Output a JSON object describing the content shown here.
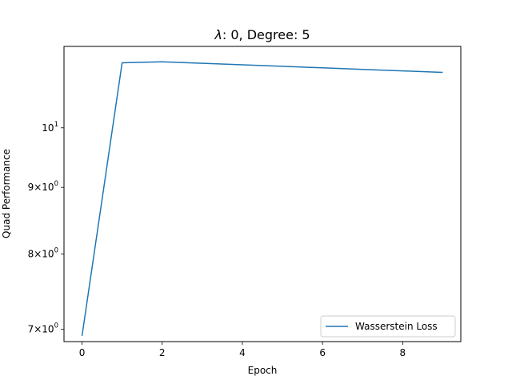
{
  "chart_data": {
    "type": "line",
    "title_parts": {
      "symbol": "λ",
      "rest": ": 0, Degree: 5"
    },
    "xlabel": "Epoch",
    "ylabel": "Quad Performance",
    "y_scale": "log",
    "xlim": [
      -0.45,
      9.45
    ],
    "ylim": [
      6.85,
      11.55
    ],
    "x_ticks": [
      0,
      2,
      4,
      6,
      8
    ],
    "y_ticks": [
      {
        "value": 7,
        "base": "7",
        "mult": "×",
        "ten": "10",
        "exp": "0"
      },
      {
        "value": 8,
        "base": "8",
        "mult": "×",
        "ten": "10",
        "exp": "0"
      },
      {
        "value": 9,
        "base": "9",
        "mult": "×",
        "ten": "10",
        "exp": "0"
      },
      {
        "value": 10,
        "base": "",
        "mult": "",
        "ten": "10",
        "exp": "1"
      }
    ],
    "series": [
      {
        "name": "Wasserstein Loss",
        "color": "#1f77b4",
        "x": [
          0,
          1,
          2,
          3,
          4,
          5,
          6,
          7,
          8,
          9
        ],
        "values": [
          6.92,
          11.22,
          11.24,
          11.21,
          11.18,
          11.15,
          11.12,
          11.09,
          11.06,
          11.03
        ]
      }
    ],
    "legend": {
      "position": "lower-right"
    },
    "grid": false
  }
}
